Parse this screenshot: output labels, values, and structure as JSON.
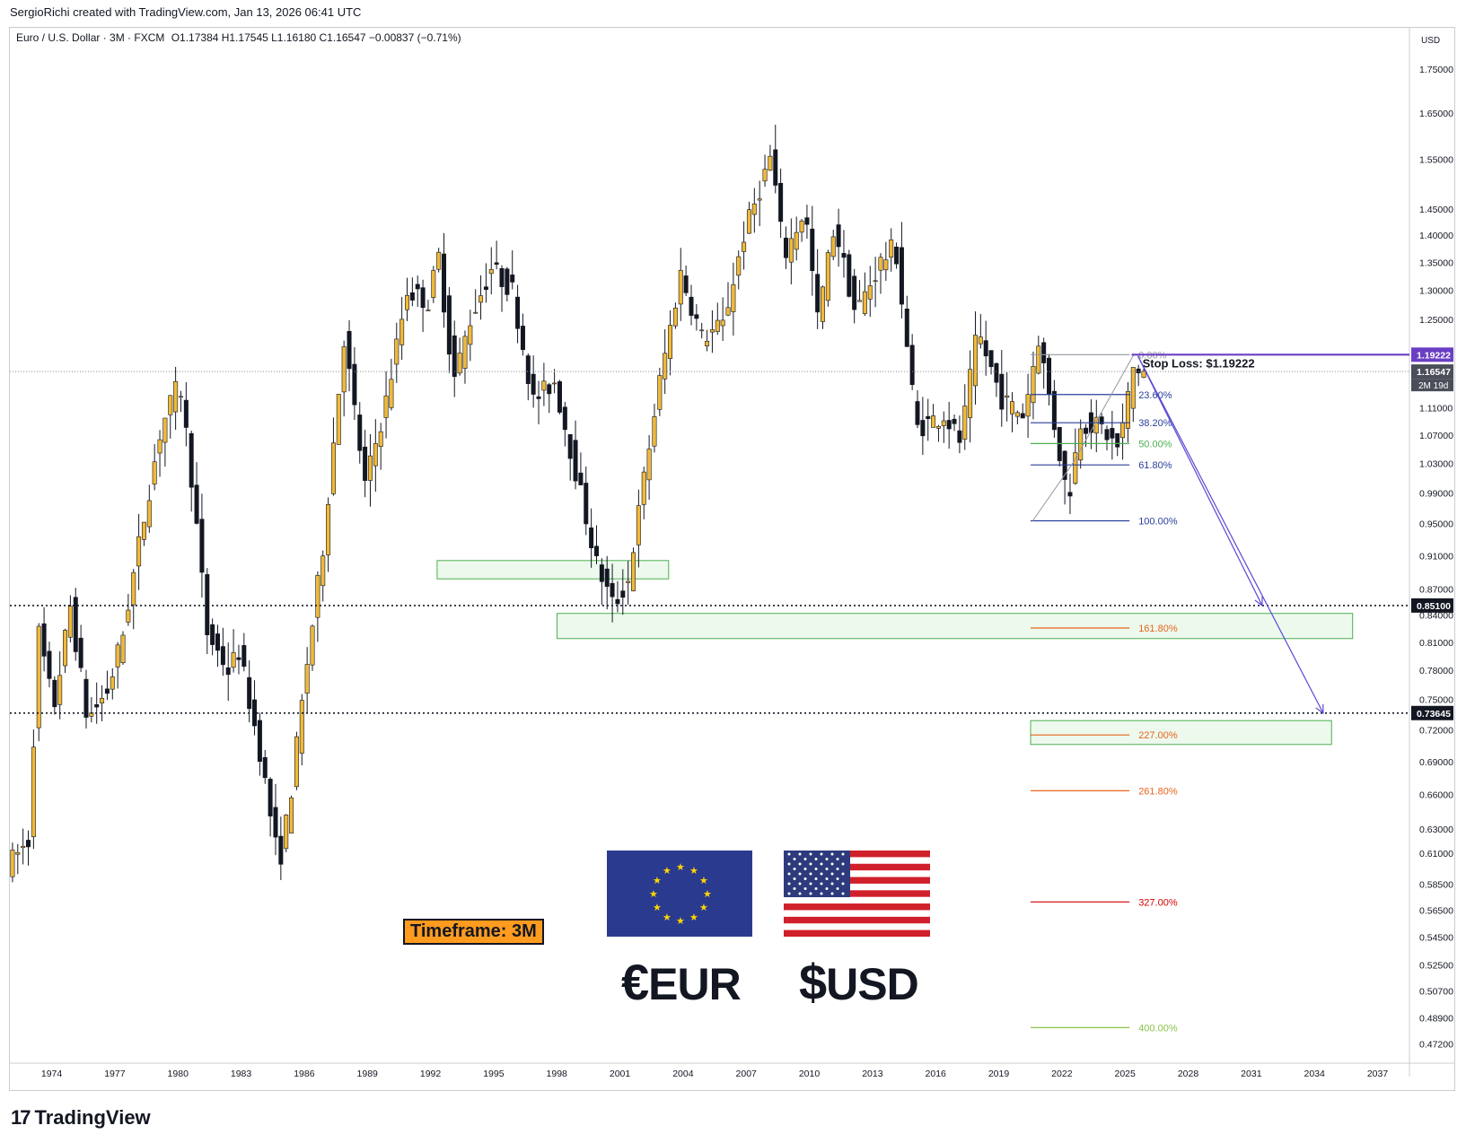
{
  "header": {
    "credit": "SergioRichi created with TradingView.com, Jan 13, 2026 06:41 UTC"
  },
  "legend": {
    "symbol": "Euro / U.S. Dollar · 3M · FXCM",
    "ohlc": "O1.17384  H1.17545  L1.16180  C1.16547  −0.00837 (−0.71%)"
  },
  "currency": "USD",
  "timeframe_label": "Timeframe: 3M",
  "brand": {
    "name": "TradingView"
  },
  "currencies": {
    "eur": "EUR",
    "eur_symbol": "€",
    "usd": "USD",
    "usd_symbol": "$"
  },
  "colors": {
    "bull": "#f0b93a",
    "bear": "#131722",
    "stop": "#6a3fc4",
    "zone_fill": "#e6f6e6",
    "zone_border": "#4caf50",
    "fib_blue": "#2a3f9a",
    "fib_green": "#4caf50",
    "fib_orange": "#e8641b",
    "fib_red": "#d50000",
    "fib_lime": "#8bc34a"
  },
  "chart_data": {
    "type": "candlestick",
    "instrument": "EURUSD",
    "scale": "log",
    "ylim": [
      0.46,
      1.85
    ],
    "xlim": [
      1972.0,
      2038.5
    ],
    "x_ticks": [
      "1974",
      "1977",
      "1980",
      "1983",
      "1986",
      "1989",
      "1992",
      "1995",
      "1998",
      "2001",
      "2004",
      "2007",
      "2010",
      "2013",
      "2016",
      "2019",
      "2022",
      "2025",
      "2028",
      "2031",
      "2034",
      "2037"
    ],
    "y_ticks": [
      1.75,
      1.65,
      1.55,
      1.45,
      1.4,
      1.35,
      1.3,
      1.25,
      1.11,
      1.07,
      1.03,
      0.99,
      0.95,
      0.91,
      0.87,
      0.84,
      0.81,
      0.78,
      0.75,
      0.72,
      0.69,
      0.66,
      0.63,
      0.61,
      0.585,
      0.565,
      0.545,
      0.525,
      0.507,
      0.489,
      0.472
    ],
    "y_tick_labels": [
      "1.75000",
      "1.65000",
      "1.55000",
      "1.45000",
      "1.40000",
      "1.35000",
      "1.30000",
      "1.25000",
      "1.11000",
      "1.07000",
      "1.03000",
      "0.99000",
      "0.95000",
      "0.91000",
      "0.87000",
      "0.84000",
      "0.81000",
      "0.78000",
      "0.75000",
      "0.72000",
      "0.69000",
      "0.66000",
      "0.63000",
      "0.61000",
      "0.58500",
      "0.56500",
      "0.54500",
      "0.52500",
      "0.50700",
      "0.48900",
      "0.47200"
    ],
    "price_path": [
      [
        1972.0,
        0.6
      ],
      [
        1973.0,
        0.62
      ],
      [
        1973.5,
        0.82
      ],
      [
        1974.2,
        0.74
      ],
      [
        1975.0,
        0.85
      ],
      [
        1975.8,
        0.73
      ],
      [
        1976.8,
        0.76
      ],
      [
        1977.5,
        0.82
      ],
      [
        1978.3,
        0.93
      ],
      [
        1979.3,
        1.08
      ],
      [
        1980.2,
        1.15
      ],
      [
        1980.8,
        1.0
      ],
      [
        1981.5,
        0.82
      ],
      [
        1982.5,
        0.78
      ],
      [
        1983.0,
        0.8
      ],
      [
        1984.0,
        0.7
      ],
      [
        1984.9,
        0.6
      ],
      [
        1985.4,
        0.65
      ],
      [
        1986.2,
        0.78
      ],
      [
        1987.0,
        0.92
      ],
      [
        1988.0,
        1.22
      ],
      [
        1989.0,
        1.0
      ],
      [
        1990.0,
        1.12
      ],
      [
        1991.0,
        1.3
      ],
      [
        1992.0,
        1.28
      ],
      [
        1992.5,
        1.36
      ],
      [
        1993.2,
        1.15
      ],
      [
        1994.0,
        1.25
      ],
      [
        1995.0,
        1.34
      ],
      [
        1996.0,
        1.3
      ],
      [
        1997.0,
        1.12
      ],
      [
        1998.0,
        1.15
      ],
      [
        1999.0,
        1.02
      ],
      [
        2000.0,
        0.9
      ],
      [
        2000.8,
        0.85
      ],
      [
        2001.5,
        0.88
      ],
      [
        2002.2,
        1.0
      ],
      [
        2003.0,
        1.15
      ],
      [
        2004.0,
        1.33
      ],
      [
        2005.0,
        1.22
      ],
      [
        2006.0,
        1.24
      ],
      [
        2007.0,
        1.4
      ],
      [
        2008.3,
        1.56
      ],
      [
        2008.9,
        1.36
      ],
      [
        2009.9,
        1.45
      ],
      [
        2010.5,
        1.25
      ],
      [
        2011.3,
        1.42
      ],
      [
        2012.3,
        1.26
      ],
      [
        2013.5,
        1.35
      ],
      [
        2014.2,
        1.38
      ],
      [
        2015.2,
        1.08
      ],
      [
        2016.5,
        1.1
      ],
      [
        2017.3,
        1.06
      ],
      [
        2018.1,
        1.23
      ],
      [
        2019.3,
        1.12
      ],
      [
        2020.3,
        1.1
      ],
      [
        2021.0,
        1.22
      ],
      [
        2022.4,
        0.98
      ],
      [
        2023.0,
        1.09
      ],
      [
        2024.0,
        1.08
      ],
      [
        2024.8,
        1.05
      ],
      [
        2025.5,
        1.17
      ],
      [
        2025.95,
        1.165
      ]
    ],
    "annotations": {
      "stop_loss": {
        "label": "Stop Loss: $1.19222",
        "value": 1.19222,
        "axis_label": "1.19222"
      },
      "last_price": {
        "value": 1.16547,
        "axis_label": "1.16547",
        "countdown": "2M 19d"
      },
      "target_1": {
        "value": 0.851,
        "axis_label": "0.85100"
      },
      "target_2": {
        "value": 0.73645,
        "axis_label": "0.73645"
      },
      "fib": [
        {
          "label": "0.00%",
          "value": 1.19222,
          "color": "#9598a1"
        },
        {
          "label": "23.60%",
          "value": 1.13,
          "color": "#2a3f9a"
        },
        {
          "label": "38.20%",
          "value": 1.088,
          "color": "#2a3f9a"
        },
        {
          "label": "50.00%",
          "value": 1.058,
          "color": "#4caf50"
        },
        {
          "label": "61.80%",
          "value": 1.028,
          "color": "#2a3f9a"
        },
        {
          "label": "100.00%",
          "value": 0.9536,
          "color": "#2a3f9a"
        },
        {
          "label": "161.80%",
          "value": 0.8256,
          "color": "#e8641b"
        },
        {
          "label": "227.00%",
          "value": 0.7151,
          "color": "#e8641b"
        },
        {
          "label": "261.80%",
          "value": 0.6634,
          "color": "#e8641b"
        },
        {
          "label": "327.00%",
          "value": 0.5713,
          "color": "#d50000"
        },
        {
          "label": "400.00%",
          "value": 0.4825,
          "color": "#8bc34a"
        }
      ],
      "zones": [
        {
          "x0": 1992.3,
          "x1": 2003.3,
          "y0": 0.882,
          "y1": 0.904
        },
        {
          "x0": 1998.0,
          "x1": 2035.8,
          "y0": 0.814,
          "y1": 0.842
        },
        {
          "x0": 2020.5,
          "x1": 2034.8,
          "y0": 0.706,
          "y1": 0.729
        }
      ]
    }
  }
}
